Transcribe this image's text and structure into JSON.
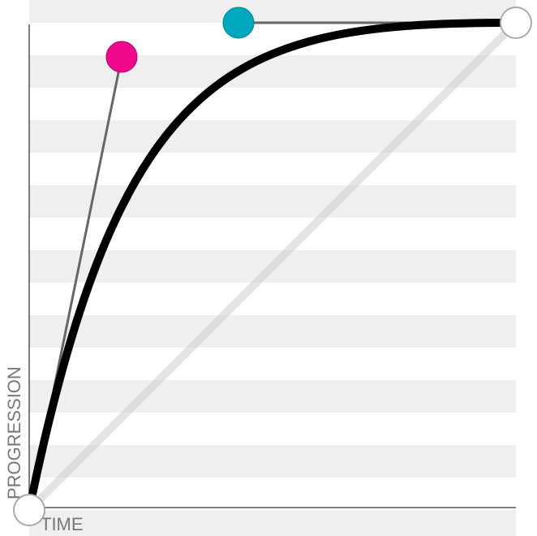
{
  "editor": {
    "y_label": "PROGRESSION",
    "x_label": "TIME",
    "bezier": [
      0.19,
      0.93,
      0.43,
      1
    ]
  }
}
